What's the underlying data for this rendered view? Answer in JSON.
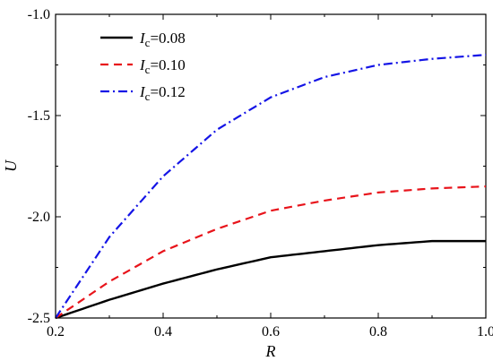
{
  "chart_data": {
    "type": "line",
    "xlabel": "R",
    "ylabel": "U",
    "xlim": [
      0.2,
      1.0
    ],
    "ylim": [
      -2.5,
      -1.0
    ],
    "xticks": [
      0.2,
      0.4,
      0.6,
      0.8,
      1.0
    ],
    "xtick_labels": [
      "0.2",
      "0.4",
      "0.6",
      "0.8",
      "1.0"
    ],
    "yticks": [
      -2.5,
      -2.0,
      -1.5,
      -1.0
    ],
    "ytick_labels": [
      "-2.5",
      "-2.0",
      "-1.5",
      "-1.0"
    ],
    "grid": false,
    "legend_position": "top-left",
    "series": [
      {
        "label_var": "I",
        "label_sub": "c",
        "label_value": "=0.08",
        "color": "#000000",
        "style": "solid",
        "x": [
          0.2,
          0.3,
          0.4,
          0.5,
          0.6,
          0.7,
          0.8,
          0.9,
          1.0
        ],
        "y": [
          -2.5,
          -2.41,
          -2.33,
          -2.26,
          -2.2,
          -2.17,
          -2.14,
          -2.12,
          -2.12
        ]
      },
      {
        "label_var": "I",
        "label_sub": "c",
        "label_value": "=0.10",
        "color": "#e8141b",
        "style": "dashed",
        "x": [
          0.2,
          0.3,
          0.4,
          0.5,
          0.6,
          0.7,
          0.8,
          0.9,
          1.0
        ],
        "y": [
          -2.5,
          -2.32,
          -2.17,
          -2.06,
          -1.97,
          -1.92,
          -1.88,
          -1.86,
          -1.85
        ]
      },
      {
        "label_var": "I",
        "label_sub": "c",
        "label_value": "=0.12",
        "color": "#1414e6",
        "style": "dashdot",
        "x": [
          0.2,
          0.3,
          0.4,
          0.5,
          0.6,
          0.7,
          0.8,
          0.9,
          1.0
        ],
        "y": [
          -2.5,
          -2.1,
          -1.8,
          -1.57,
          -1.41,
          -1.31,
          -1.25,
          -1.22,
          -1.2
        ]
      }
    ]
  }
}
